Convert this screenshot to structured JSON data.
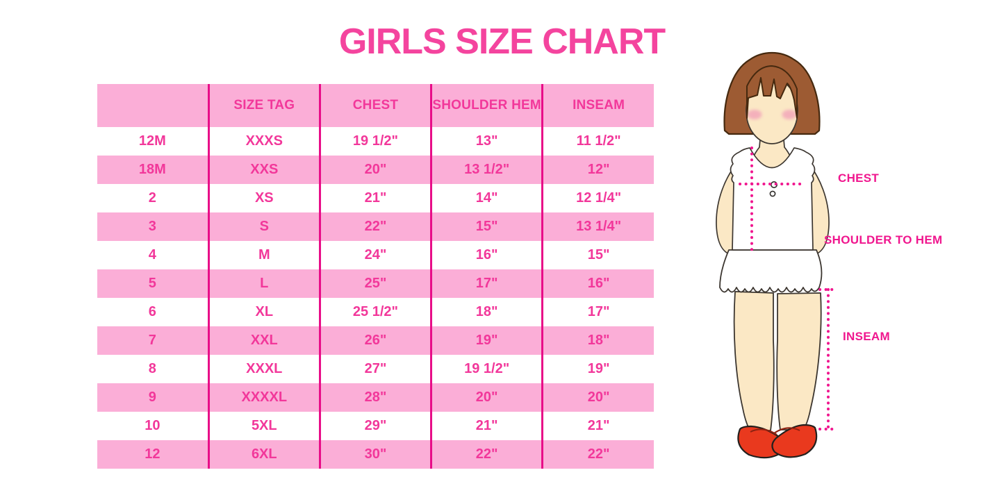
{
  "page": {
    "title": "GIRLS SIZE CHART"
  },
  "colors": {
    "title_pink": "#F4449E",
    "table_text_pink": "#F2379A",
    "row_pink": "#FBAED7",
    "grid_magenta": "#E80D88",
    "label_magenta": "#F0168E",
    "hair_brown": "#9D5B33",
    "skin": "#FBE8C5",
    "blush": "#F3A7BA",
    "shoe_red": "#E9391E"
  },
  "table": {
    "headers": [
      "",
      "SIZE TAG",
      "CHEST",
      "SHOULDER HEM",
      "INSEAM"
    ],
    "rows": [
      {
        "cells": [
          "12M",
          "XXXS",
          "19 1/2\"",
          "13\"",
          "11 1/2\""
        ]
      },
      {
        "cells": [
          "18M",
          "XXS",
          "20\"",
          "13 1/2\"",
          "12\""
        ]
      },
      {
        "cells": [
          "2",
          "XS",
          "21\"",
          "14\"",
          "12 1/4\""
        ]
      },
      {
        "cells": [
          "3",
          "S",
          "22\"",
          "15\"",
          "13 1/4\""
        ]
      },
      {
        "cells": [
          "4",
          "M",
          "24\"",
          "16\"",
          "15\""
        ]
      },
      {
        "cells": [
          "5",
          "L",
          "25\"",
          "17\"",
          "16\""
        ]
      },
      {
        "cells": [
          "6",
          "XL",
          "25 1/2\"",
          "18\"",
          "17\""
        ]
      },
      {
        "cells": [
          "7",
          "XXL",
          "26\"",
          "19\"",
          "18\""
        ]
      },
      {
        "cells": [
          "8",
          "XXXL",
          "27\"",
          "19 1/2\"",
          "19\""
        ]
      },
      {
        "cells": [
          "9",
          "XXXXL",
          "28\"",
          "20\"",
          "20\""
        ]
      },
      {
        "cells": [
          "10",
          "5XL",
          "29\"",
          "21\"",
          "21\""
        ]
      },
      {
        "cells": [
          "12",
          "6XL",
          "30\"",
          "22\"",
          "22\""
        ]
      }
    ]
  },
  "diagram": {
    "figure": "girl-measurement-illustration",
    "labels": {
      "chest": "CHEST",
      "shoulder_to_hem": "SHOULDER TO HEM",
      "inseam": "INSEAM"
    }
  }
}
